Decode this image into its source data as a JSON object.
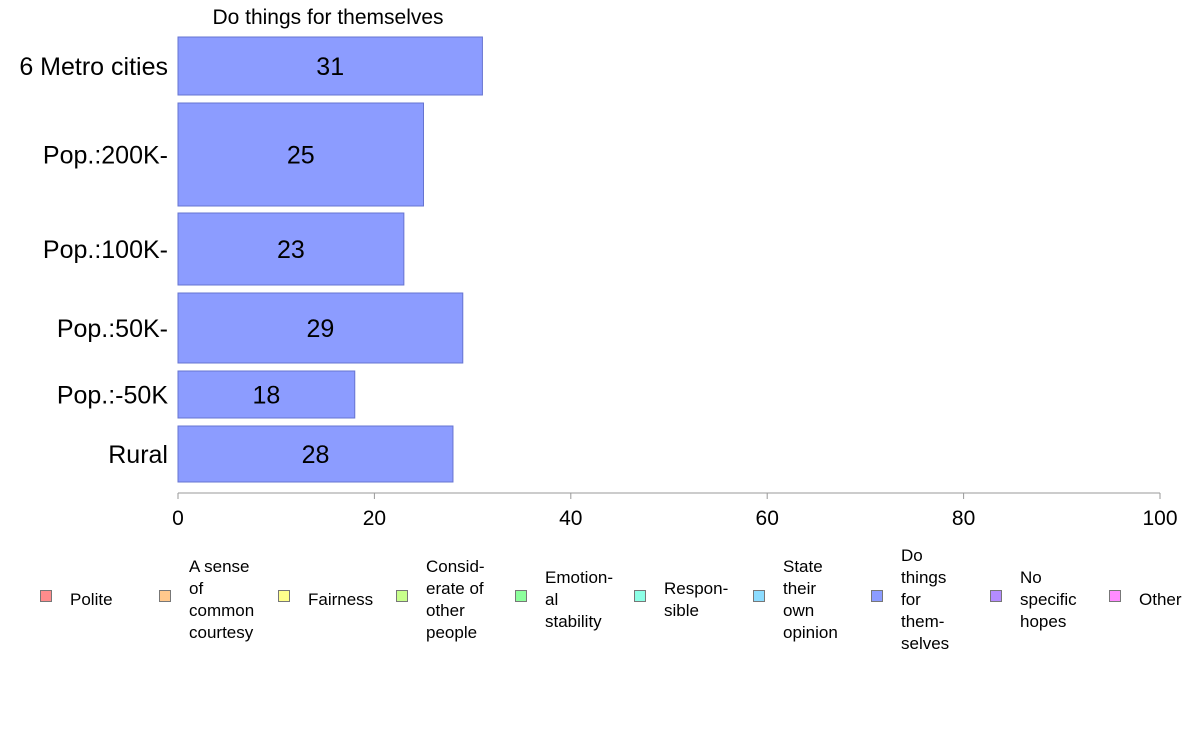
{
  "chart_data": {
    "type": "bar",
    "orientation": "horizontal",
    "title": "Do things for themselves",
    "categories": [
      "6 Metro cities",
      "Pop.:200K-",
      "Pop.:100K-",
      "Pop.:50K-",
      "Pop.:-50K",
      "Rural"
    ],
    "values": [
      31,
      25,
      23,
      29,
      18,
      28
    ],
    "data_labels": [
      "31",
      "25",
      "23",
      "29",
      "18",
      "28"
    ],
    "xlim": [
      0,
      100
    ],
    "xticks": [
      "0",
      "20",
      "40",
      "60",
      "80",
      "100"
    ],
    "grid": false,
    "bar_color": "#8c9cff",
    "bar_border_color": "#6674d0",
    "legend_position": "bottom",
    "legend": [
      {
        "label": "Polite",
        "color": "#ff8c8c"
      },
      {
        "label": "A sense\nof\ncommon\ncourtesy",
        "color": "#ffc88c"
      },
      {
        "label": "Fairness",
        "color": "#ffff8c"
      },
      {
        "label": "Consid-\nerate of\nother\npeople",
        "color": "#c8ff8c"
      },
      {
        "label": "Emotion-\nal\nstability",
        "color": "#8cff9c"
      },
      {
        "label": "Respon-\nsible",
        "color": "#8cffe6"
      },
      {
        "label": "State\ntheir\nown\nopinion",
        "color": "#8cdcff"
      },
      {
        "label": "Do\nthings\nfor\nthem-\nselves",
        "color": "#8c9cff"
      },
      {
        "label": "No\nspecific\nhopes",
        "color": "#b48cff"
      },
      {
        "label": "Other",
        "color": "#ff8cff"
      }
    ]
  }
}
